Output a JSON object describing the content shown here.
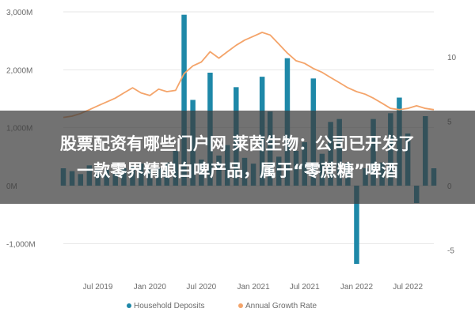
{
  "headline": {
    "line1": "股票配资有哪些门户网 莱茵生物：公司已开发了",
    "line2": "一款零界精酿白啤产品，属于“零蔗糖”啤酒"
  },
  "colors": {
    "bar": "#1e88a8",
    "line": "#f4a46a",
    "axis_text": "#6b6b6b",
    "gridline": "#e6e6e6",
    "overlay": "rgba(60,60,60,0.72)"
  },
  "chart_data": {
    "type": "bar",
    "title": "",
    "x_tick_labels": [
      "Jul 2019",
      "Jan 2020",
      "Jul 2020",
      "Jan 2021",
      "Jul 2021",
      "Jan 2022",
      "Jul 2022"
    ],
    "y_left": {
      "ticks": [
        -1000,
        0,
        1000,
        2000,
        3000
      ],
      "tick_labels": [
        "-1,000M",
        "0M",
        "1,000M",
        "2,000M",
        "3,000M"
      ],
      "range": [
        -1400,
        3100
      ]
    },
    "y_right": {
      "ticks": [
        -5,
        0,
        5,
        10
      ],
      "tick_labels": [
        "-5",
        "0",
        "5",
        "10"
      ],
      "range": [
        -7.6,
        12.0
      ]
    },
    "months": [
      "2019-03",
      "2019-04",
      "2019-05",
      "2019-06",
      "2019-07",
      "2019-08",
      "2019-09",
      "2019-10",
      "2019-11",
      "2019-12",
      "2020-01",
      "2020-02",
      "2020-03",
      "2020-04",
      "2020-05",
      "2020-06",
      "2020-07",
      "2020-08",
      "2020-09",
      "2020-10",
      "2020-11",
      "2020-12",
      "2021-01",
      "2021-02",
      "2021-03",
      "2021-04",
      "2021-05",
      "2021-06",
      "2021-07",
      "2021-08",
      "2021-09",
      "2021-10",
      "2021-11",
      "2021-12",
      "2022-01",
      "2022-02",
      "2022-03",
      "2022-04",
      "2022-05",
      "2022-06",
      "2022-07",
      "2022-08",
      "2022-09",
      "2022-10"
    ],
    "series": [
      {
        "name": "Household Deposits",
        "axis": "left",
        "type": "bar",
        "values": [
          300,
          250,
          200,
          350,
          300,
          280,
          220,
          300,
          350,
          380,
          280,
          300,
          400,
          600,
          2950,
          1480,
          450,
          1950,
          520,
          700,
          1700,
          480,
          380,
          1880,
          1280,
          500,
          2200,
          600,
          750,
          1850,
          550,
          1100,
          1150,
          400,
          -1350,
          300,
          1150,
          400,
          1250,
          1520,
          900,
          -300,
          1200,
          300
        ]
      },
      {
        "name": "Annual Growth Rate",
        "axis": "right",
        "type": "line",
        "values": [
          5.3,
          5.4,
          5.6,
          5.9,
          6.2,
          6.5,
          6.8,
          7.2,
          7.6,
          7.2,
          7.0,
          7.5,
          7.3,
          7.4,
          8.7,
          9.3,
          9.6,
          10.4,
          9.9,
          10.4,
          10.9,
          11.3,
          11.6,
          11.9,
          11.7,
          11.0,
          10.3,
          9.7,
          9.5,
          9.1,
          8.8,
          8.4,
          8.0,
          7.6,
          7.3,
          7.1,
          6.8,
          6.4,
          6.0,
          5.9,
          6.0,
          6.2,
          6.0,
          5.9
        ]
      }
    ],
    "legend": {
      "position": "bottom",
      "entries": [
        "Household Deposits",
        "Annual Growth Rate"
      ]
    },
    "grid": true
  }
}
